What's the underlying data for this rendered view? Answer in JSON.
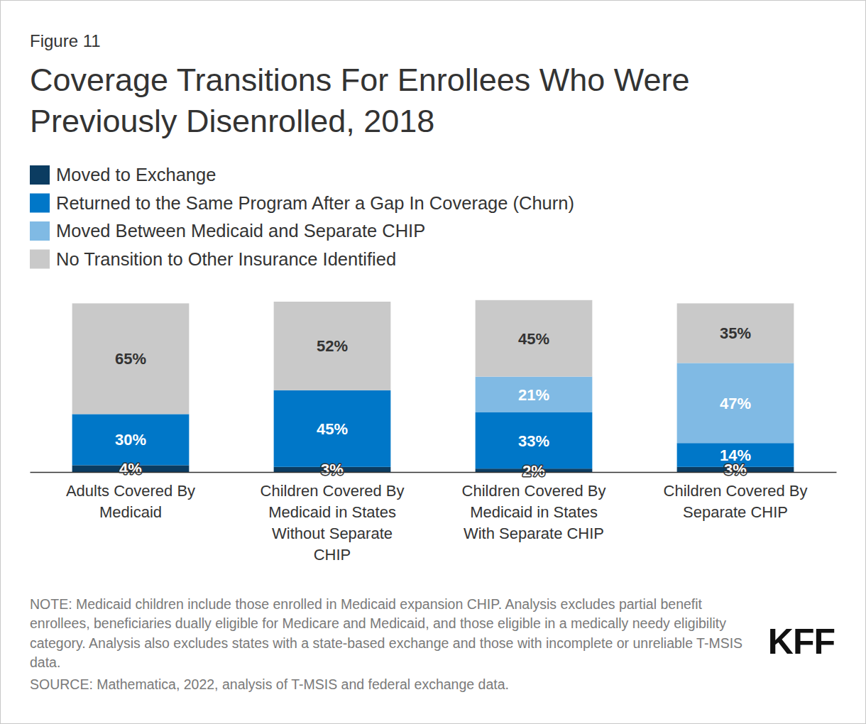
{
  "chart_data": {
    "type": "bar",
    "figure_number": "Figure 11",
    "title": "Coverage Transitions For Enrollees Who Were Previously Disenrolled, 2018",
    "categories": [
      "Adults Covered By Medicaid",
      "Children Covered By Medicaid in States Without Separate CHIP",
      "Children Covered By Medicaid in States With Separate CHIP",
      "Children Covered By Separate CHIP"
    ],
    "series": [
      {
        "name": "Moved to Exchange",
        "color": "#0b3c61",
        "values": [
          4,
          3,
          2,
          3
        ],
        "value_labels": [
          "4%",
          "3%",
          "2%",
          "3%"
        ]
      },
      {
        "name": "Returned to the Same Program After a Gap In Coverage (Churn)",
        "color": "#0077c8",
        "values": [
          30,
          45,
          33,
          14
        ],
        "value_labels": [
          "30%",
          "45%",
          "33%",
          "14%"
        ]
      },
      {
        "name": "Moved Between Medicaid and Separate CHIP",
        "color": "#80bae4",
        "values": [
          null,
          null,
          21,
          47
        ],
        "value_labels": [
          null,
          null,
          "21%",
          "47%"
        ]
      },
      {
        "name": "No Transition to Other Insurance Identified",
        "color": "#c9c9c9",
        "values": [
          65,
          52,
          45,
          35
        ],
        "value_labels": [
          "65%",
          "52%",
          "45%",
          "35%"
        ]
      }
    ],
    "ylim": [
      0,
      101
    ],
    "stacked": true,
    "data_labels": true,
    "tick_labels": "x",
    "note": "NOTE: Medicaid children include those enrolled in Medicaid expansion CHIP. Analysis excludes partial benefit enrollees, beneficiaries dually eligible for Medicare and Medicaid, and those eligible in a medically needy eligibility category. Analysis also excludes states with a state-based exchange and those with incomplete or unreliable T-MSIS data.",
    "source": "SOURCE: Mathematica, 2022, analysis of T-MSIS and federal exchange data.",
    "logo": "KFF"
  }
}
